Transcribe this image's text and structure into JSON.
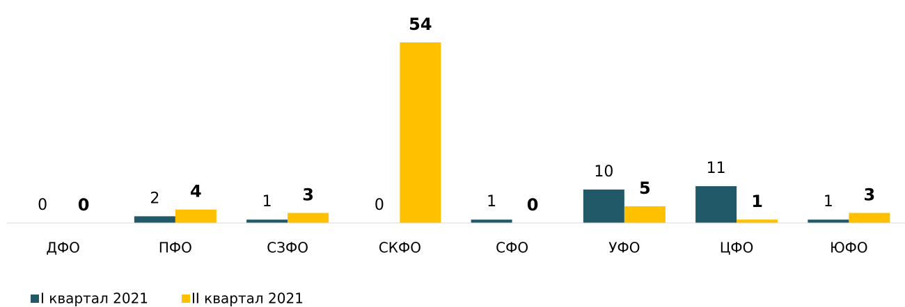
{
  "chart_data": {
    "type": "bar",
    "categories": [
      "ДФО",
      "ПФО",
      "СЗФО",
      "СКФО",
      "СФО",
      "УФО",
      "ЦФО",
      "ЮФО"
    ],
    "series": [
      {
        "name": "I квартал 2021",
        "color": "#215968",
        "values": [
          0,
          2,
          1,
          0,
          1,
          10,
          11,
          1
        ]
      },
      {
        "name": "II квартал 2021",
        "color": "#ffc000",
        "values": [
          0,
          4,
          3,
          54,
          0,
          5,
          1,
          3
        ]
      }
    ],
    "ylim": [
      0,
      54
    ],
    "legend": "bottom-left"
  }
}
